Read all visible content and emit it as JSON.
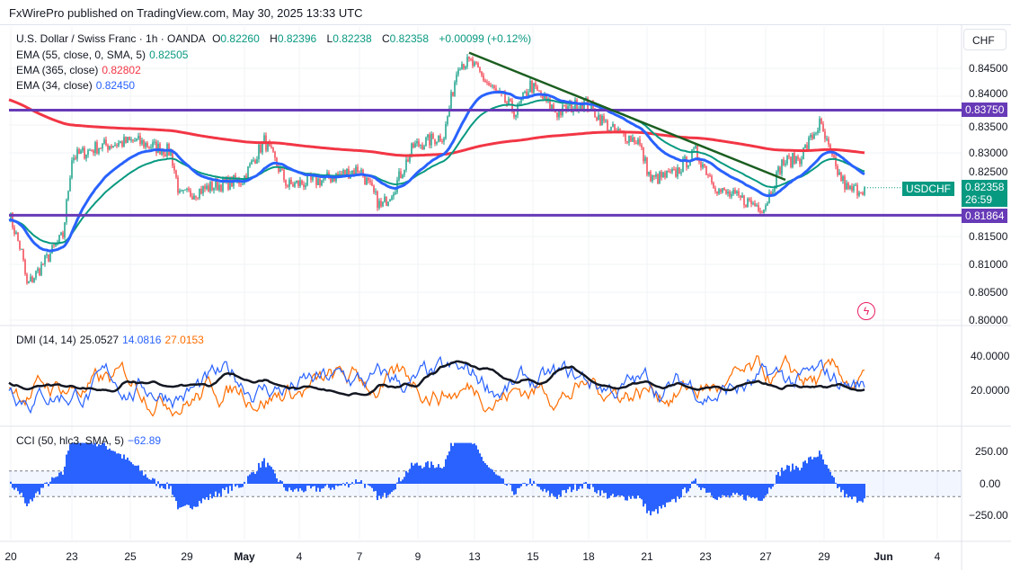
{
  "publisher": "FxWirePro published on TradingView.com, May 30, 2025 13:33 UTC",
  "symbol": {
    "name": "U.S. Dollar / Swiss Franc · 1h · OANDA",
    "o_label": "O",
    "o": "0.82260",
    "h_label": "H",
    "h": "0.82396",
    "l_label": "L",
    "l": "0.82238",
    "c_label": "C",
    "c": "0.82358",
    "change": "+0.00099 (+0.12%)"
  },
  "indicators": [
    {
      "label": "EMA (55, close, 0, SMA, 5)",
      "value": "0.82505",
      "color": "#089981"
    },
    {
      "label": "EMA (365, close)",
      "value": "0.82802",
      "color": "#f23645"
    },
    {
      "label": "EMA (34, close)",
      "value": "0.82450",
      "color": "#2962ff"
    }
  ],
  "dmi": {
    "label": "DMI (14, 14)",
    "adx": "25.0527",
    "plus_di": "14.0816",
    "minus_di": "27.0153",
    "ticks": [
      "40.0000",
      "20.0000"
    ]
  },
  "cci": {
    "label": "CCI (50, hlc3, SMA, 5)",
    "value": "−62.89",
    "ticks": [
      "250.00",
      "0.00",
      "−250.00"
    ]
  },
  "price_axis": {
    "currency": "CHF",
    "ticks": [
      "0.84500",
      "0.84000",
      "0.83500",
      "0.83000",
      "0.82500",
      "0.81500",
      "0.81000",
      "0.80500",
      "0.80000"
    ],
    "resistance": "0.83750",
    "support": "0.81864",
    "last": "0.82358",
    "countdown": "26:59",
    "ticker": "USDCHF"
  },
  "x_axis": [
    "20",
    "23",
    "25",
    "29",
    "May",
    "4",
    "7",
    "9",
    "13",
    "15",
    "18",
    "21",
    "23",
    "27",
    "29",
    "Jun",
    "4"
  ],
  "chart_data": {
    "type": "candlestick",
    "title": "USDCHF 1h",
    "levels": {
      "resistance": 0.8375,
      "support": 0.81864
    },
    "trendline": [
      [
        256,
        0.8478
      ],
      [
        432,
        0.825
      ]
    ],
    "path": [
      [
        0,
        0.819
      ],
      [
        7,
        0.812
      ],
      [
        10,
        0.806
      ],
      [
        17,
        0.809
      ],
      [
        30,
        0.815
      ],
      [
        35,
        0.829
      ],
      [
        50,
        0.831
      ],
      [
        70,
        0.832
      ],
      [
        90,
        0.83
      ],
      [
        95,
        0.822
      ],
      [
        115,
        0.824
      ],
      [
        130,
        0.825
      ],
      [
        142,
        0.832
      ],
      [
        155,
        0.824
      ],
      [
        175,
        0.825
      ],
      [
        195,
        0.827
      ],
      [
        207,
        0.82
      ],
      [
        215,
        0.824
      ],
      [
        225,
        0.831
      ],
      [
        242,
        0.833
      ],
      [
        250,
        0.846
      ],
      [
        257,
        0.846
      ],
      [
        267,
        0.842
      ],
      [
        282,
        0.837
      ],
      [
        290,
        0.842
      ],
      [
        305,
        0.837
      ],
      [
        320,
        0.839
      ],
      [
        335,
        0.834
      ],
      [
        350,
        0.832
      ],
      [
        357,
        0.825
      ],
      [
        370,
        0.826
      ],
      [
        382,
        0.83
      ],
      [
        395,
        0.823
      ],
      [
        420,
        0.82
      ],
      [
        430,
        0.828
      ],
      [
        440,
        0.829
      ],
      [
        451,
        0.835
      ],
      [
        460,
        0.827
      ],
      [
        467,
        0.823
      ],
      [
        476,
        0.82358
      ]
    ]
  }
}
